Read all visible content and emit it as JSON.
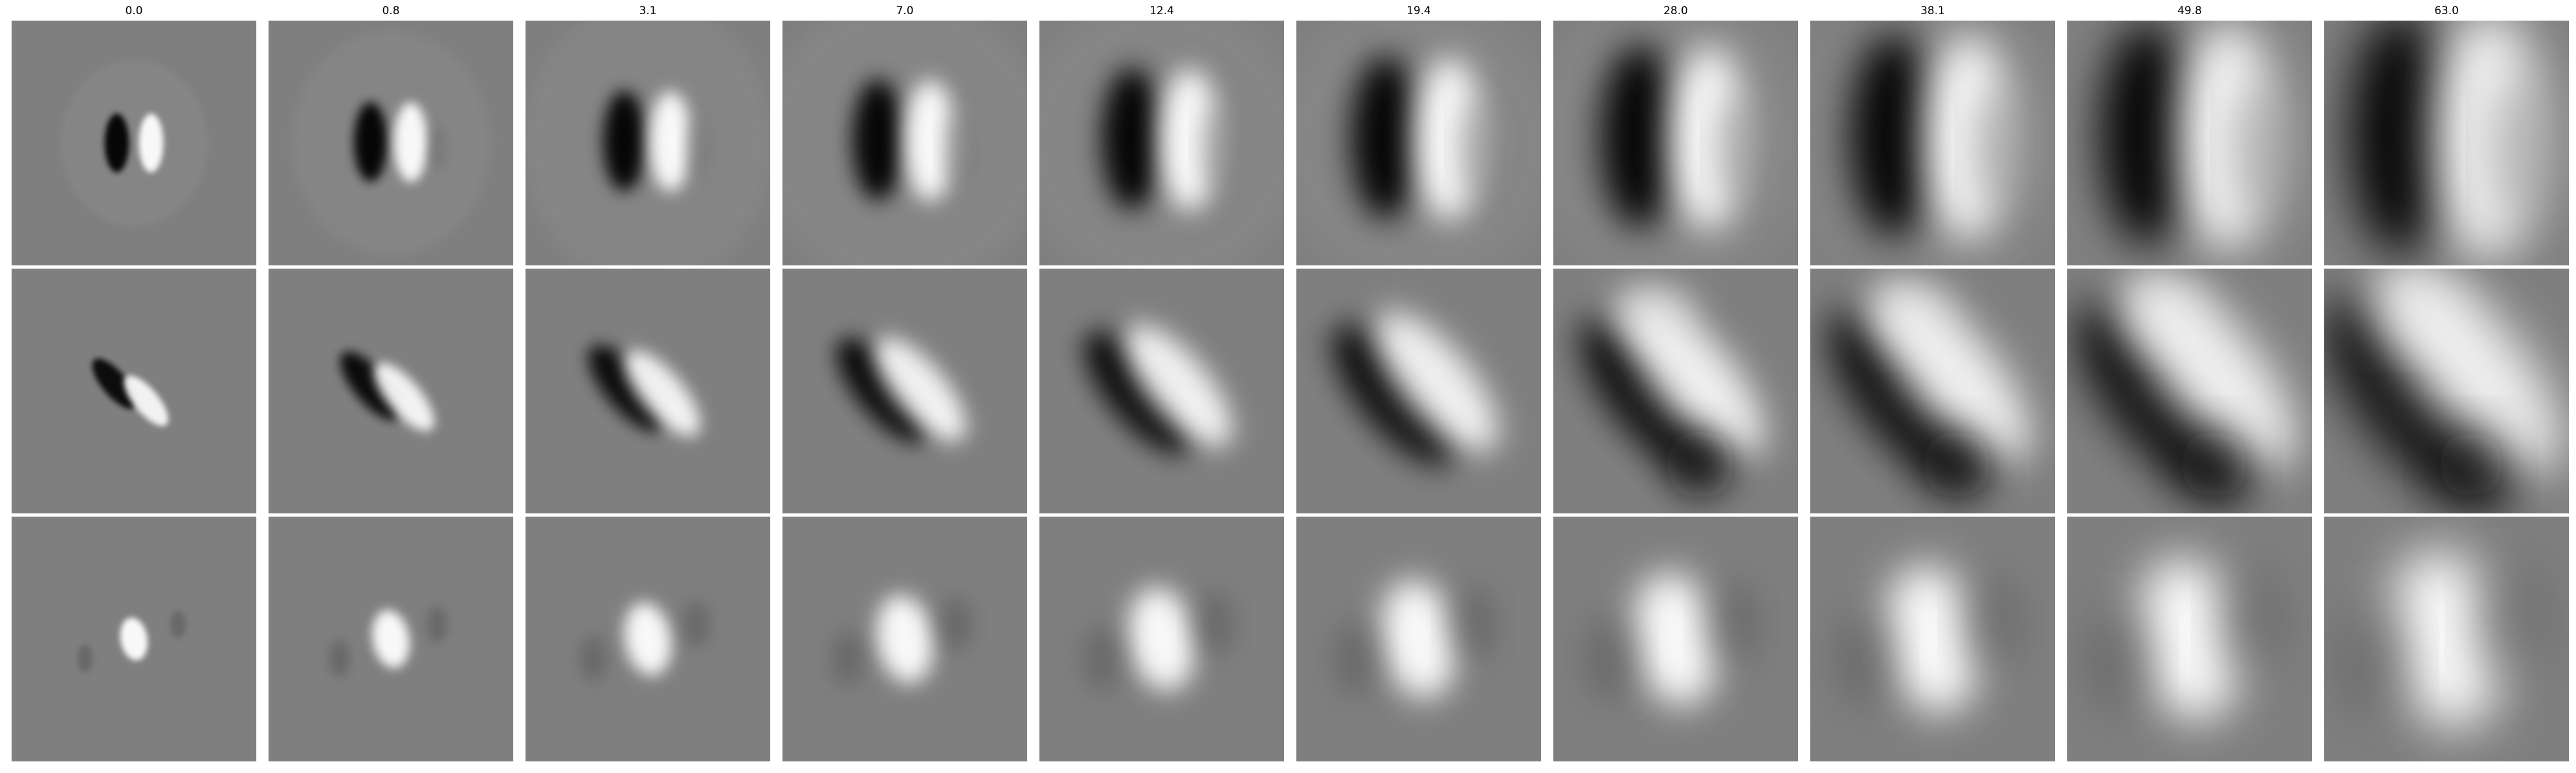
{
  "figure": {
    "column_titles": [
      "0.0",
      "0.8",
      "3.1",
      "7.0",
      "12.4",
      "19.4",
      "28.0",
      "38.1",
      "49.8",
      "63.0"
    ],
    "background_gray": "#7f7f7f",
    "rows": [
      {
        "pattern": "vertical-odd"
      },
      {
        "pattern": "diagonal-odd"
      },
      {
        "pattern": "center-blob"
      }
    ]
  }
}
